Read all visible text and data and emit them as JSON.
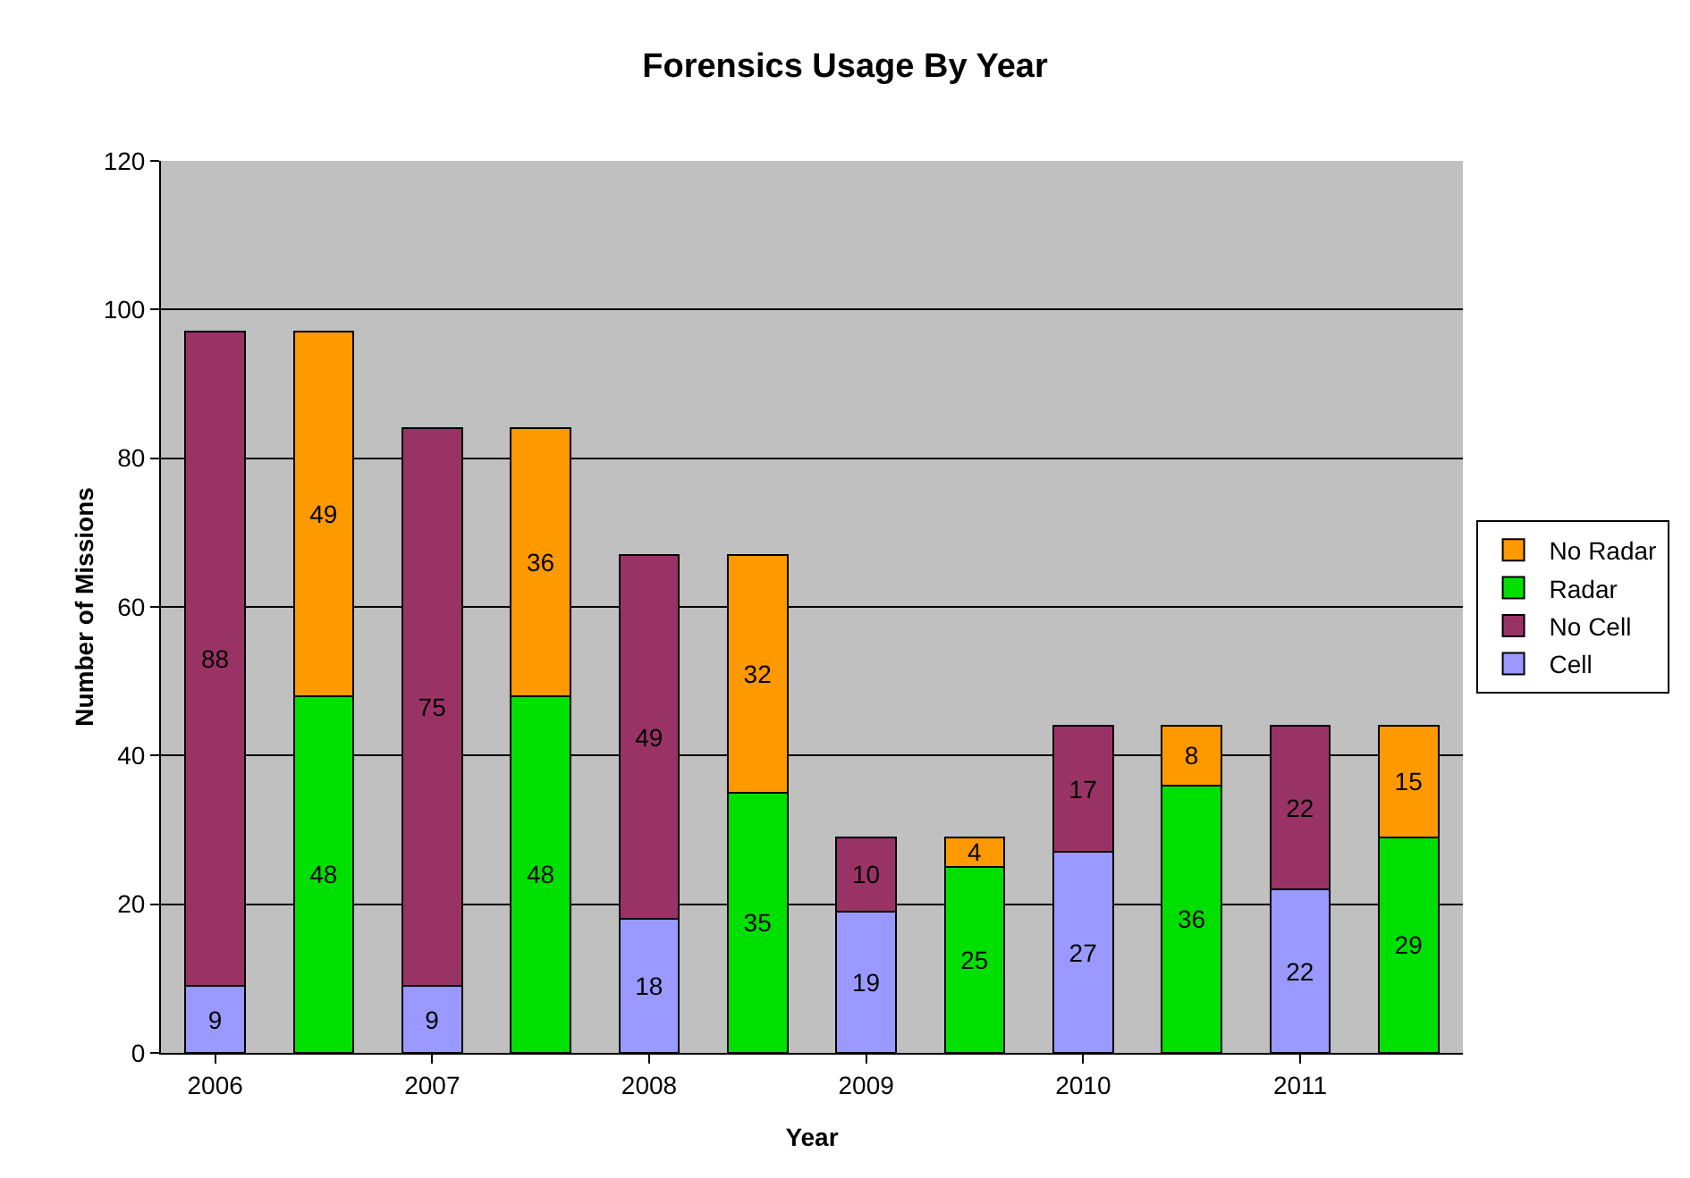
{
  "chart_data": {
    "type": "bar",
    "title": "Forensics Usage By Year",
    "xlabel": "Year",
    "ylabel": "Number of Missions",
    "categories": [
      "2006",
      null,
      "2007",
      null,
      "2008",
      null,
      "2009",
      null,
      "2010",
      null,
      "2011",
      null
    ],
    "stacked": true,
    "data_labels": true,
    "grid": "y",
    "legend": "right",
    "ylim": [
      0,
      120
    ],
    "yticks": [
      0,
      20,
      40,
      60,
      80,
      100,
      120
    ],
    "series": [
      {
        "name": "Cell",
        "color": "#9999ff",
        "values": [
          9,
          null,
          9,
          null,
          18,
          null,
          19,
          null,
          27,
          null,
          22,
          null
        ]
      },
      {
        "name": "No Cell",
        "color": "#993366",
        "values": [
          88,
          null,
          75,
          null,
          49,
          null,
          10,
          null,
          17,
          null,
          22,
          null
        ]
      },
      {
        "name": "Radar",
        "color": "#00e000",
        "values": [
          null,
          48,
          null,
          48,
          null,
          35,
          null,
          25,
          null,
          36,
          null,
          29
        ]
      },
      {
        "name": "No Radar",
        "color": "#ff9900",
        "values": [
          null,
          49,
          null,
          36,
          null,
          32,
          null,
          4,
          null,
          8,
          null,
          15
        ]
      }
    ]
  }
}
